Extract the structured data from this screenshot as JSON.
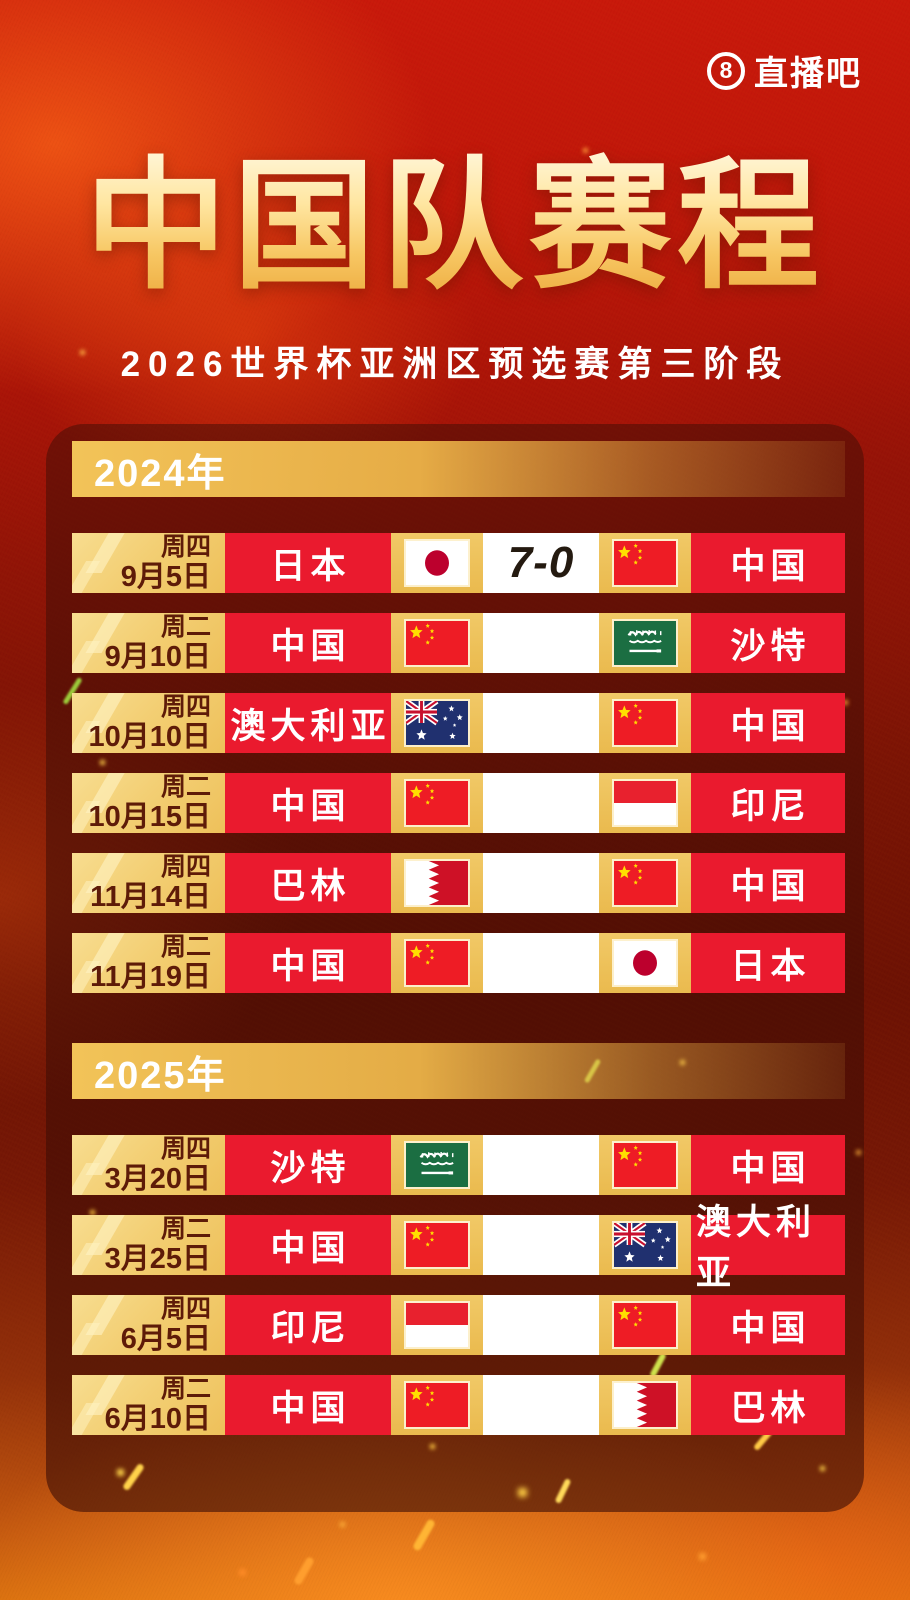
{
  "logo": {
    "number": "8",
    "text": "直播吧"
  },
  "header": {
    "title": "中国队赛程",
    "subtitle": "2026世界杯亚洲区预选赛第三阶段"
  },
  "colors": {
    "background_red": "#c9190b",
    "panel_maroon": "#420d05",
    "gold_cell": "#eec05a",
    "team_cell_red": "#ea1a2e",
    "date_text": "#5e1b08",
    "score_text": "#241a10",
    "title_gold": "#f7c763"
  },
  "sections": [
    {
      "year": "2024年",
      "matches": [
        {
          "weekday": "周四",
          "date": "9月5日",
          "home": "日本",
          "home_flag": "japan",
          "score": "7-0",
          "away": "中国",
          "away_flag": "china"
        },
        {
          "weekday": "周二",
          "date": "9月10日",
          "home": "中国",
          "home_flag": "china",
          "score": "",
          "away": "沙特",
          "away_flag": "saudi"
        },
        {
          "weekday": "周四",
          "date": "10月10日",
          "home": "澳大利亚",
          "home_flag": "australia",
          "score": "",
          "away": "中国",
          "away_flag": "china"
        },
        {
          "weekday": "周二",
          "date": "10月15日",
          "home": "中国",
          "home_flag": "china",
          "score": "",
          "away": "印尼",
          "away_flag": "indonesia"
        },
        {
          "weekday": "周四",
          "date": "11月14日",
          "home": "巴林",
          "home_flag": "bahrain",
          "score": "",
          "away": "中国",
          "away_flag": "china"
        },
        {
          "weekday": "周二",
          "date": "11月19日",
          "home": "中国",
          "home_flag": "china",
          "score": "",
          "away": "日本",
          "away_flag": "japan"
        }
      ]
    },
    {
      "year": "2025年",
      "matches": [
        {
          "weekday": "周四",
          "date": "3月20日",
          "home": "沙特",
          "home_flag": "saudi",
          "score": "",
          "away": "中国",
          "away_flag": "china"
        },
        {
          "weekday": "周二",
          "date": "3月25日",
          "home": "中国",
          "home_flag": "china",
          "score": "",
          "away": "澳大利亚",
          "away_flag": "australia"
        },
        {
          "weekday": "周四",
          "date": "6月5日",
          "home": "印尼",
          "home_flag": "indonesia",
          "score": "",
          "away": "中国",
          "away_flag": "china"
        },
        {
          "weekday": "周二",
          "date": "6月10日",
          "home": "中国",
          "home_flag": "china",
          "score": "",
          "away": "巴林",
          "away_flag": "bahrain"
        }
      ]
    }
  ]
}
